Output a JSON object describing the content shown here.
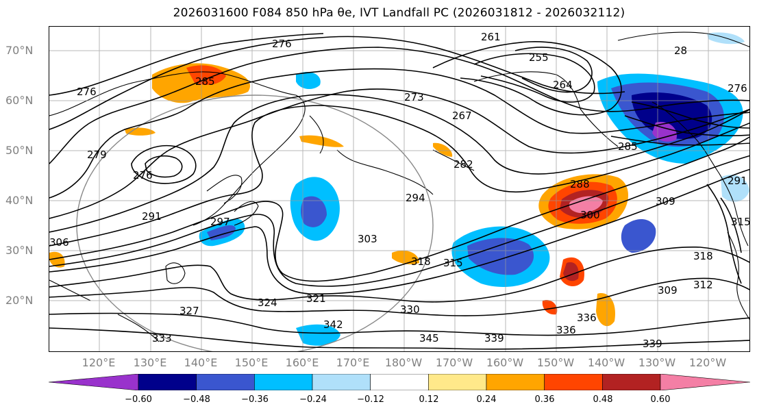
{
  "title": "2026031600 F084 850 hPa θe, IVT Landfall PC (2026031812 - 2026032112)",
  "lat_labels": [
    "70°N",
    "60°N",
    "50°N",
    "40°N",
    "30°N",
    "20°N"
  ],
  "lon_labels": [
    "120°E",
    "130°E",
    "140°E",
    "150°E",
    "160°E",
    "170°E",
    "180°W",
    "170°W",
    "160°W",
    "150°W",
    "140°W",
    "130°W",
    "120°W"
  ],
  "colorbar": {
    "ticks": [
      "−0.60",
      "−0.48",
      "−0.36",
      "−0.24",
      "−0.12",
      "0.12",
      "0.24",
      "0.36",
      "0.48",
      "0.60"
    ],
    "colors": [
      "#9932cc",
      "#00008b",
      "#3a56cf",
      "#00bfff",
      "#b0e0fa",
      "#ffffff",
      "#ffe98a",
      "#ffa500",
      "#ff4500",
      "#b22222",
      "#f47fa5"
    ]
  },
  "contour_labels": [
    "276",
    "285",
    "276",
    "261",
    "255",
    "273",
    "267",
    "264",
    "279",
    "276",
    "282",
    "285",
    "294",
    "291",
    "297",
    "288",
    "300",
    "309",
    "306",
    "303",
    "318",
    "315",
    "318",
    "312",
    "309",
    "324",
    "321",
    "327",
    "330",
    "336",
    "333",
    "342",
    "345",
    "339",
    "336",
    "339",
    "28",
    "276",
    "291",
    "315"
  ]
}
